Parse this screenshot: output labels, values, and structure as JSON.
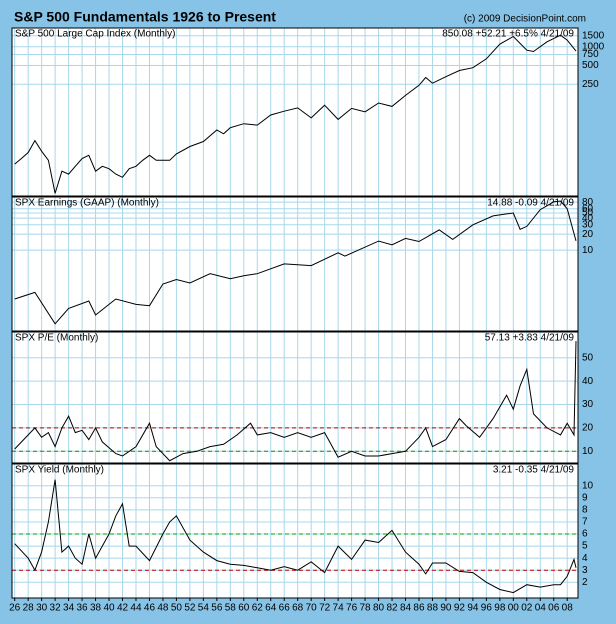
{
  "header": {
    "title": "S&P 500 Fundamentals 1926 to Present",
    "copyright": "(c) 2009 DecisionPoint.com"
  },
  "chart_data": [
    {
      "type": "line",
      "title": "S&P 500 Large Cap Index (Monthly)",
      "summary": "850.08 +52.21 +6.5% 4/21/09",
      "log": true,
      "grid": true,
      "color": "#000000",
      "xlim": [
        1925.6,
        2009.6
      ],
      "ylim": [
        4,
        2000
      ],
      "yticks": [
        250,
        500,
        750,
        1000,
        1500
      ],
      "x": [
        1926,
        1927,
        1928,
        1929,
        1930,
        1931,
        1932,
        1933,
        1934,
        1935,
        1936,
        1937,
        1938,
        1939,
        1940,
        1941,
        1942,
        1943,
        1944,
        1945,
        1946,
        1947,
        1948,
        1949,
        1950,
        1952,
        1954,
        1956,
        1957,
        1958,
        1960,
        1962,
        1964,
        1966,
        1968,
        1970,
        1972,
        1974,
        1976,
        1978,
        1980,
        1982,
        1984,
        1986,
        1987,
        1988,
        1990,
        1992,
        1994,
        1996,
        1998,
        2000,
        2002,
        2003,
        2005,
        2007,
        2008,
        2009.3
      ],
      "values": [
        13,
        16,
        20,
        31,
        21,
        15,
        4.4,
        10,
        9,
        12,
        16,
        18,
        10,
        12,
        11,
        9,
        8,
        11,
        12,
        15,
        18,
        15,
        15,
        15,
        19,
        25,
        30,
        46,
        40,
        50,
        58,
        55,
        80,
        92,
        104,
        72,
        115,
        68,
        102,
        90,
        125,
        110,
        165,
        240,
        320,
        260,
        330,
        415,
        460,
        640,
        1100,
        1460,
        880,
        840,
        1200,
        1530,
        1280,
        850.08
      ]
    },
    {
      "type": "line",
      "title": "SPX Earnings (GAAP) (Monthly)",
      "summary": "14.88 -0.09 4/21/09",
      "log": true,
      "grid": true,
      "color": "#000000",
      "xlim": [
        1925.6,
        2009.6
      ],
      "ylim": [
        0.3,
        100
      ],
      "yticks": [
        10,
        20,
        30,
        40,
        50,
        60,
        80
      ],
      "x": [
        1926,
        1929,
        1932,
        1934,
        1937,
        1938,
        1941,
        1944,
        1946,
        1948,
        1950,
        1952,
        1955,
        1958,
        1960,
        1962,
        1966,
        1970,
        1974,
        1975,
        1980,
        1982,
        1984,
        1986,
        1989,
        1991,
        1994,
        1997,
        1999,
        2000,
        2001,
        2002,
        2004,
        2006,
        2007,
        2008,
        2009.3
      ],
      "values": [
        1.2,
        1.6,
        0.41,
        0.8,
        1.1,
        0.6,
        1.2,
        0.95,
        0.9,
        2.3,
        2.8,
        2.4,
        3.6,
        2.9,
        3.3,
        3.6,
        5.5,
        5.1,
        8.9,
        7.7,
        14.8,
        12.6,
        16.6,
        14.5,
        24,
        15.9,
        30,
        44,
        48,
        50,
        24.7,
        28,
        58,
        81,
        84,
        60,
        14.88
      ]
    },
    {
      "type": "line",
      "title": "SPX P/E (Monthly)",
      "summary": "57.13 +3.83 4/21/09",
      "log": false,
      "grid": true,
      "color": "#000000",
      "ref_lines": [
        {
          "value": 20,
          "color": "#c00000"
        },
        {
          "value": 10,
          "color": "#00a000"
        }
      ],
      "xlim": [
        1925.6,
        2009.6
      ],
      "ylim": [
        5,
        61
      ],
      "yticks": [
        10,
        20,
        30,
        40,
        50
      ],
      "x": [
        1926,
        1928,
        1929,
        1930,
        1931,
        1932,
        1933,
        1934,
        1935,
        1936,
        1937,
        1938,
        1939,
        1941,
        1942,
        1944,
        1946,
        1947,
        1949,
        1951,
        1953,
        1955,
        1957,
        1959,
        1961,
        1962,
        1964,
        1966,
        1968,
        1970,
        1972,
        1974,
        1976,
        1978,
        1980,
        1982,
        1984,
        1986,
        1987,
        1988,
        1990,
        1992,
        1993,
        1995,
        1997,
        1999,
        2000,
        2001,
        2002,
        2003,
        2005,
        2007,
        2008,
        2009,
        2009.3
      ],
      "values": [
        11,
        17,
        20,
        16,
        18,
        12,
        20,
        25,
        18,
        19,
        15,
        20,
        14,
        9,
        8,
        12,
        22,
        12,
        6,
        9,
        10,
        12,
        13,
        17,
        22,
        17,
        18,
        16,
        18,
        16,
        18,
        7.5,
        10,
        8,
        8,
        9,
        10,
        16,
        20,
        12,
        15,
        24,
        21,
        16,
        24,
        34,
        28,
        38,
        45,
        26,
        20,
        17,
        22,
        17,
        57.13
      ]
    },
    {
      "type": "line",
      "title": "SPX Yield (Monthly)",
      "summary": "3.21 -0.35 4/21/09",
      "log": false,
      "grid": true,
      "color": "#000000",
      "ref_lines": [
        {
          "value": 6,
          "color": "#00a000"
        },
        {
          "value": 3,
          "color": "#c00000"
        }
      ],
      "xlim": [
        1925.6,
        2009.6
      ],
      "ylim": [
        0.7,
        11.8
      ],
      "yticks": [
        2,
        3,
        4,
        5,
        6,
        7,
        8,
        9,
        10
      ],
      "xticks": [
        {
          "value": 1926,
          "label": "26"
        },
        {
          "value": 1928,
          "label": "28"
        },
        {
          "value": 1930,
          "label": "30"
        },
        {
          "value": 1932,
          "label": "32"
        },
        {
          "value": 1934,
          "label": "34"
        },
        {
          "value": 1936,
          "label": "36"
        },
        {
          "value": 1938,
          "label": "38"
        },
        {
          "value": 1940,
          "label": "40"
        },
        {
          "value": 1942,
          "label": "42"
        },
        {
          "value": 1944,
          "label": "44"
        },
        {
          "value": 1946,
          "label": "46"
        },
        {
          "value": 1948,
          "label": "48"
        },
        {
          "value": 1950,
          "label": "50"
        },
        {
          "value": 1952,
          "label": "52"
        },
        {
          "value": 1954,
          "label": "54"
        },
        {
          "value": 1956,
          "label": "56"
        },
        {
          "value": 1958,
          "label": "58"
        },
        {
          "value": 1960,
          "label": "60"
        },
        {
          "value": 1962,
          "label": "62"
        },
        {
          "value": 1964,
          "label": "64"
        },
        {
          "value": 1966,
          "label": "66"
        },
        {
          "value": 1968,
          "label": "68"
        },
        {
          "value": 1970,
          "label": "70"
        },
        {
          "value": 1972,
          "label": "72"
        },
        {
          "value": 1974,
          "label": "74"
        },
        {
          "value": 1976,
          "label": "76"
        },
        {
          "value": 1978,
          "label": "78"
        },
        {
          "value": 1980,
          "label": "80"
        },
        {
          "value": 1982,
          "label": "82"
        },
        {
          "value": 1984,
          "label": "84"
        },
        {
          "value": 1986,
          "label": "86"
        },
        {
          "value": 1988,
          "label": "88"
        },
        {
          "value": 1990,
          "label": "90"
        },
        {
          "value": 1992,
          "label": "92"
        },
        {
          "value": 1994,
          "label": "94"
        },
        {
          "value": 1996,
          "label": "96"
        },
        {
          "value": 1998,
          "label": "98"
        },
        {
          "value": 2000,
          "label": "00"
        },
        {
          "value": 2002,
          "label": "02"
        },
        {
          "value": 2004,
          "label": "04"
        },
        {
          "value": 2006,
          "label": "06"
        },
        {
          "value": 2008,
          "label": "08"
        }
      ],
      "x": [
        1926,
        1928,
        1929,
        1930,
        1931,
        1932,
        1933,
        1934,
        1935,
        1936,
        1937,
        1938,
        1940,
        1941,
        1942,
        1943,
        1944,
        1946,
        1948,
        1949,
        1950,
        1952,
        1954,
        1956,
        1958,
        1960,
        1962,
        1964,
        1966,
        1968,
        1970,
        1972,
        1974,
        1976,
        1978,
        1980,
        1982,
        1984,
        1986,
        1987,
        1988,
        1990,
        1992,
        1994,
        1996,
        1998,
        2000,
        2002,
        2004,
        2006,
        2007,
        2008,
        2009,
        2009.3
      ],
      "values": [
        5.2,
        4,
        3,
        4.5,
        7,
        10.5,
        4.5,
        5,
        4,
        3.5,
        6,
        4,
        6,
        7.5,
        8.5,
        5,
        5,
        3.8,
        6,
        7,
        7.5,
        5.5,
        4.5,
        3.8,
        3.5,
        3.4,
        3.2,
        3,
        3.3,
        3,
        3.7,
        2.8,
        5,
        3.9,
        5.5,
        5.3,
        6.3,
        4.5,
        3.5,
        2.7,
        3.6,
        3.6,
        2.9,
        2.8,
        2,
        1.4,
        1.15,
        1.8,
        1.6,
        1.8,
        1.8,
        2.5,
        3.9,
        3.21
      ]
    }
  ]
}
